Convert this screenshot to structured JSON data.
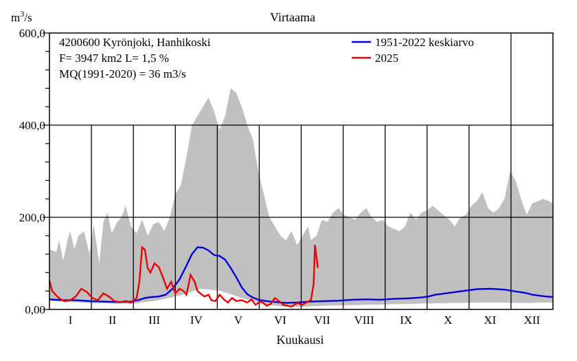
{
  "chart_data": {
    "type": "line",
    "title": "Virtaama",
    "ylabel_base": "m",
    "ylabel_sup": "3",
    "ylabel_tail": "/s",
    "xlabel": "Kuukausi",
    "info_lines": [
      "4200600 Kyrönjoki, Hanhikoski",
      "F=   3947 km2 L=  1,5 %",
      "MQ(1991-2020) = 36 m3/s"
    ],
    "ylim": [
      0,
      600
    ],
    "yticks": [
      {
        "value": 0,
        "label": "0,00"
      },
      {
        "value": 200,
        "label": "200,0"
      },
      {
        "value": 400,
        "label": "400,0"
      },
      {
        "value": 600,
        "label": "600,0"
      }
    ],
    "months": [
      "I",
      "II",
      "III",
      "IV",
      "V",
      "VI",
      "VII",
      "VIII",
      "IX",
      "X",
      "XI",
      "XII"
    ],
    "legend": [
      {
        "name": "1951-2022 keskiarvo",
        "color": "#0000dd"
      },
      {
        "name": "2025",
        "color": "#ee0000"
      }
    ],
    "colors": {
      "range": "#c0c0c0",
      "mean": "#0000dd",
      "current": "#ee0000"
    },
    "range_max": [
      [
        1,
        130
      ],
      [
        6,
        125
      ],
      [
        8,
        150
      ],
      [
        11,
        105
      ],
      [
        14,
        150
      ],
      [
        16,
        170
      ],
      [
        19,
        130
      ],
      [
        22,
        160
      ],
      [
        26,
        170
      ],
      [
        30,
        120
      ],
      [
        33,
        185
      ],
      [
        37,
        100
      ],
      [
        40,
        190
      ],
      [
        43,
        210
      ],
      [
        46,
        165
      ],
      [
        50,
        190
      ],
      [
        53,
        200
      ],
      [
        56,
        225
      ],
      [
        60,
        180
      ],
      [
        64,
        165
      ],
      [
        68,
        195
      ],
      [
        72,
        160
      ],
      [
        76,
        185
      ],
      [
        80,
        190
      ],
      [
        84,
        170
      ],
      [
        88,
        200
      ],
      [
        92,
        250
      ],
      [
        96,
        270
      ],
      [
        100,
        330
      ],
      [
        104,
        400
      ],
      [
        108,
        420
      ],
      [
        112,
        440
      ],
      [
        116,
        460
      ],
      [
        120,
        430
      ],
      [
        124,
        390
      ],
      [
        128,
        420
      ],
      [
        132,
        480
      ],
      [
        136,
        470
      ],
      [
        140,
        440
      ],
      [
        144,
        400
      ],
      [
        148,
        370
      ],
      [
        152,
        300
      ],
      [
        156,
        250
      ],
      [
        160,
        200
      ],
      [
        164,
        180
      ],
      [
        168,
        160
      ],
      [
        172,
        150
      ],
      [
        176,
        170
      ],
      [
        180,
        140
      ],
      [
        184,
        160
      ],
      [
        188,
        180
      ],
      [
        190,
        150
      ],
      [
        194,
        160
      ],
      [
        198,
        195
      ],
      [
        202,
        190
      ],
      [
        206,
        210
      ],
      [
        210,
        220
      ],
      [
        214,
        205
      ],
      [
        218,
        200
      ],
      [
        222,
        195
      ],
      [
        226,
        210
      ],
      [
        230,
        220
      ],
      [
        234,
        200
      ],
      [
        238,
        190
      ],
      [
        242,
        195
      ],
      [
        246,
        180
      ],
      [
        250,
        175
      ],
      [
        254,
        170
      ],
      [
        258,
        180
      ],
      [
        262,
        210
      ],
      [
        266,
        195
      ],
      [
        270,
        210
      ],
      [
        274,
        215
      ],
      [
        278,
        225
      ],
      [
        282,
        215
      ],
      [
        286,
        205
      ],
      [
        290,
        195
      ],
      [
        294,
        180
      ],
      [
        298,
        200
      ],
      [
        302,
        205
      ],
      [
        306,
        225
      ],
      [
        310,
        235
      ],
      [
        314,
        255
      ],
      [
        318,
        220
      ],
      [
        322,
        210
      ],
      [
        326,
        220
      ],
      [
        330,
        240
      ],
      [
        334,
        300
      ],
      [
        338,
        280
      ],
      [
        342,
        240
      ],
      [
        346,
        205
      ],
      [
        350,
        230
      ],
      [
        354,
        235
      ],
      [
        358,
        240
      ],
      [
        362,
        235
      ],
      [
        365,
        230
      ]
    ],
    "range_min": [
      [
        1,
        18
      ],
      [
        30,
        14
      ],
      [
        60,
        12
      ],
      [
        80,
        20
      ],
      [
        95,
        30
      ],
      [
        110,
        45
      ],
      [
        125,
        40
      ],
      [
        140,
        25
      ],
      [
        155,
        12
      ],
      [
        170,
        6
      ],
      [
        185,
        6
      ],
      [
        200,
        8
      ],
      [
        230,
        10
      ],
      [
        260,
        12
      ],
      [
        290,
        14
      ],
      [
        320,
        15
      ],
      [
        345,
        14
      ],
      [
        365,
        15
      ]
    ],
    "mean": [
      [
        1,
        22
      ],
      [
        10,
        20
      ],
      [
        20,
        20
      ],
      [
        30,
        18
      ],
      [
        40,
        17
      ],
      [
        50,
        16
      ],
      [
        60,
        17
      ],
      [
        65,
        20
      ],
      [
        70,
        25
      ],
      [
        75,
        27
      ],
      [
        80,
        28
      ],
      [
        85,
        32
      ],
      [
        90,
        45
      ],
      [
        95,
        65
      ],
      [
        100,
        95
      ],
      [
        104,
        120
      ],
      [
        108,
        135
      ],
      [
        112,
        134
      ],
      [
        116,
        128
      ],
      [
        120,
        118
      ],
      [
        124,
        116
      ],
      [
        128,
        108
      ],
      [
        132,
        90
      ],
      [
        136,
        70
      ],
      [
        140,
        48
      ],
      [
        144,
        33
      ],
      [
        148,
        26
      ],
      [
        152,
        21
      ],
      [
        158,
        18
      ],
      [
        165,
        16
      ],
      [
        172,
        14
      ],
      [
        180,
        15
      ],
      [
        190,
        17
      ],
      [
        200,
        18
      ],
      [
        210,
        19
      ],
      [
        220,
        21
      ],
      [
        230,
        22
      ],
      [
        240,
        21
      ],
      [
        250,
        23
      ],
      [
        260,
        24
      ],
      [
        270,
        26
      ],
      [
        275,
        28
      ],
      [
        280,
        32
      ],
      [
        290,
        36
      ],
      [
        300,
        40
      ],
      [
        310,
        44
      ],
      [
        320,
        45
      ],
      [
        330,
        43
      ],
      [
        340,
        38
      ],
      [
        345,
        36
      ],
      [
        350,
        32
      ],
      [
        355,
        30
      ],
      [
        360,
        28
      ],
      [
        365,
        27
      ]
    ],
    "current": [
      [
        1,
        62
      ],
      [
        3,
        40
      ],
      [
        6,
        30
      ],
      [
        9,
        22
      ],
      [
        12,
        18
      ],
      [
        16,
        20
      ],
      [
        20,
        28
      ],
      [
        24,
        45
      ],
      [
        28,
        38
      ],
      [
        32,
        25
      ],
      [
        36,
        20
      ],
      [
        40,
        35
      ],
      [
        44,
        28
      ],
      [
        48,
        18
      ],
      [
        52,
        16
      ],
      [
        56,
        18
      ],
      [
        60,
        15
      ],
      [
        64,
        25
      ],
      [
        66,
        60
      ],
      [
        68,
        135
      ],
      [
        70,
        130
      ],
      [
        72,
        90
      ],
      [
        74,
        80
      ],
      [
        77,
        100
      ],
      [
        80,
        92
      ],
      [
        83,
        70
      ],
      [
        86,
        45
      ],
      [
        89,
        60
      ],
      [
        92,
        35
      ],
      [
        95,
        45
      ],
      [
        98,
        40
      ],
      [
        100,
        32
      ],
      [
        103,
        75
      ],
      [
        106,
        60
      ],
      [
        108,
        40
      ],
      [
        110,
        35
      ],
      [
        113,
        28
      ],
      [
        116,
        32
      ],
      [
        118,
        20
      ],
      [
        121,
        18
      ],
      [
        124,
        32
      ],
      [
        127,
        22
      ],
      [
        130,
        15
      ],
      [
        133,
        25
      ],
      [
        136,
        18
      ],
      [
        140,
        20
      ],
      [
        144,
        15
      ],
      [
        147,
        22
      ],
      [
        150,
        10
      ],
      [
        154,
        18
      ],
      [
        158,
        8
      ],
      [
        161,
        12
      ],
      [
        164,
        25
      ],
      [
        167,
        18
      ],
      [
        170,
        10
      ],
      [
        173,
        8
      ],
      [
        176,
        6
      ],
      [
        180,
        14
      ],
      [
        184,
        10
      ],
      [
        187,
        16
      ],
      [
        190,
        20
      ],
      [
        192,
        55
      ],
      [
        193,
        140
      ],
      [
        194,
        115
      ],
      [
        195,
        90
      ]
    ]
  }
}
